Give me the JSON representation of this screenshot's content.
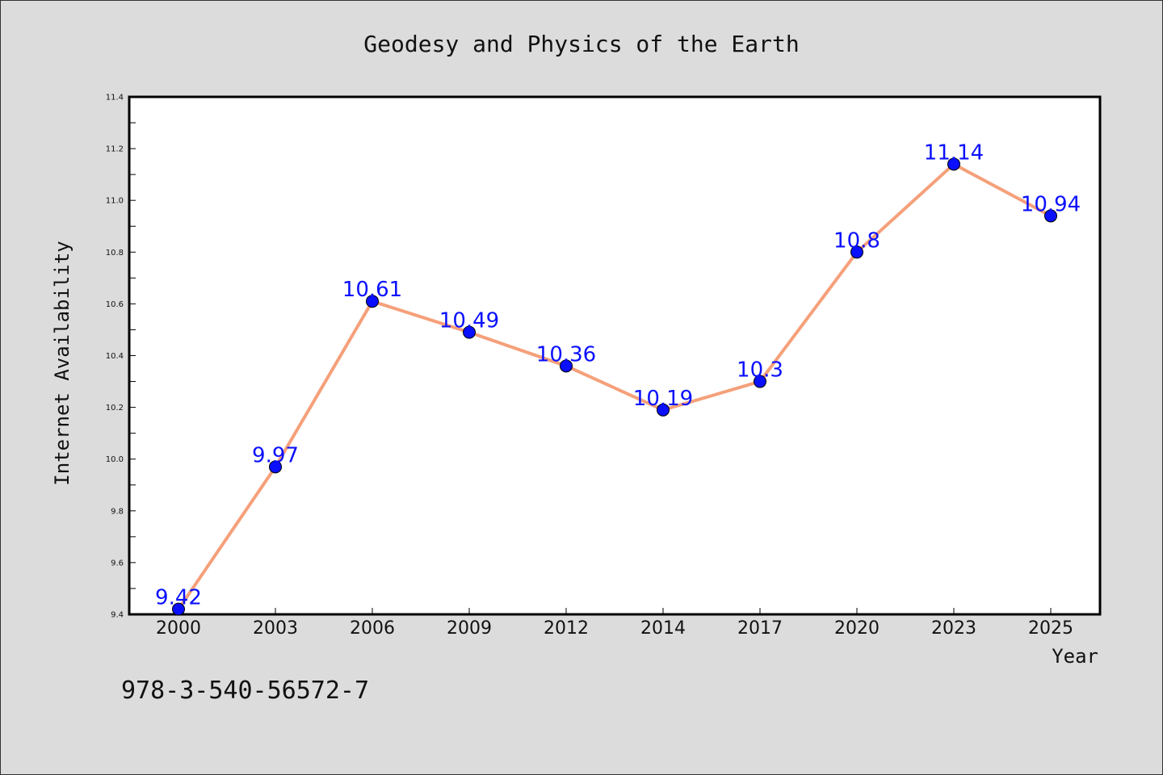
{
  "chart_data": {
    "type": "line",
    "title": "Geodesy and Physics of the Earth",
    "xlabel": "Year",
    "ylabel": "Internet Availability",
    "categories": [
      "2000",
      "2003",
      "2006",
      "2009",
      "2012",
      "2014",
      "2017",
      "2020",
      "2023",
      "2025"
    ],
    "series": [
      {
        "values": [
          9.42,
          9.97,
          10.61,
          10.49,
          10.36,
          10.19,
          10.3,
          10.8,
          11.14,
          10.94
        ],
        "labels": [
          "9.42",
          "9.97",
          "10.61",
          "10.49",
          "10.36",
          "10.19",
          "10.3",
          "10.8",
          "11.14",
          "10.94"
        ]
      }
    ],
    "ylim": [
      9.4,
      11.4
    ],
    "yticks": [
      "9.4",
      "9.6",
      "9.8",
      "10.0",
      "10.2",
      "10.4",
      "10.6",
      "10.8",
      "11.0",
      "11.2",
      "11.4"
    ],
    "grid": false,
    "line_color": "#f5a07a",
    "marker_color": "#0a10ff",
    "label_color": "#0a10ff",
    "plot_background": "#ffffff",
    "figure_background": "#dcdcdc"
  },
  "annotation": "978-3-540-56572-7"
}
